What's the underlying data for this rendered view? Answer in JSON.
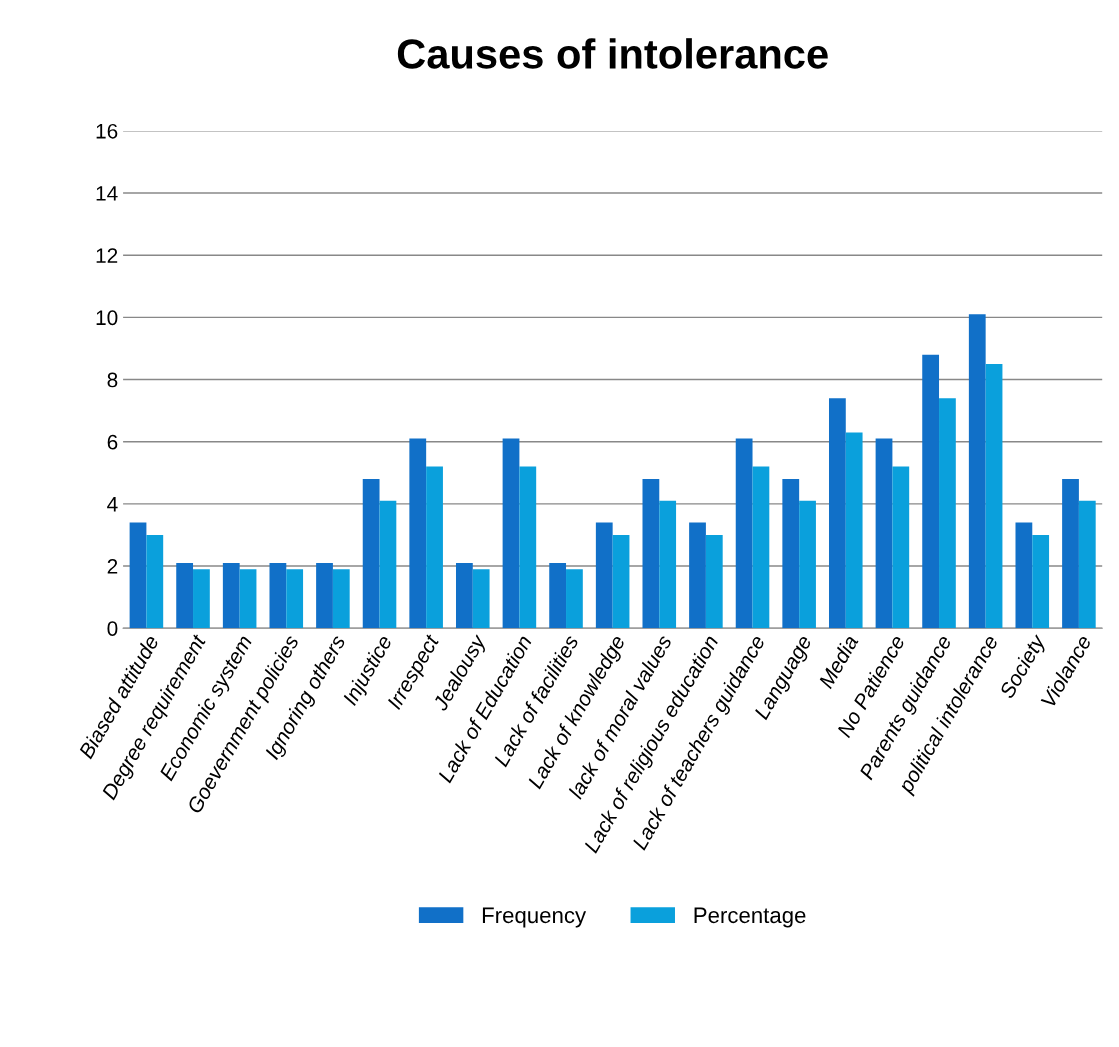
{
  "chart_data": {
    "type": "bar",
    "title": "Causes of intolerance",
    "categories": [
      "Biased attitude",
      "Degree requirement",
      "Economic system",
      "Goevernment policies",
      "Ignoring others",
      "Injustice",
      "Irrespect",
      "Jealousy",
      "Lack of Education",
      "Lack of facilities",
      "Lack of knowledge",
      "lack of moral values",
      "Lack of religious education",
      "Lack of teachers guidance",
      "Language",
      "Media",
      "No Patience",
      "Parents guidance",
      "political intolerance",
      "Society",
      "Violance"
    ],
    "series": [
      {
        "name": "Frequency",
        "color": "#1170c8",
        "values": [
          3.4,
          2.1,
          2.1,
          2.1,
          2.1,
          4.8,
          6.1,
          2.1,
          6.1,
          2.1,
          3.4,
          4.8,
          3.4,
          6.1,
          4.8,
          7.4,
          6.1,
          8.8,
          10.1,
          3.4,
          4.8
        ]
      },
      {
        "name": "Percentage",
        "color": "#0aa0dc",
        "values": [
          3.0,
          1.9,
          1.9,
          1.9,
          1.9,
          4.1,
          5.2,
          1.9,
          5.2,
          1.9,
          3.0,
          4.1,
          3.0,
          5.2,
          4.1,
          6.3,
          5.2,
          7.4,
          8.5,
          3.0,
          4.1
        ]
      }
    ],
    "ylim": [
      0,
      16
    ],
    "yticks": [
      0,
      2,
      4,
      6,
      8,
      10,
      12,
      14,
      16
    ],
    "grid": "y",
    "legend": "bottom"
  }
}
